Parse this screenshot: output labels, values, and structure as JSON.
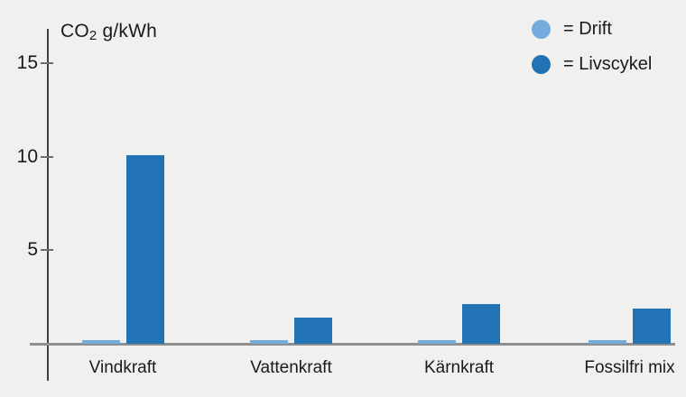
{
  "chart_data": {
    "type": "bar",
    "title": {
      "prefix": "CO",
      "subscript": "2",
      "suffix": " g/kWh"
    },
    "categories": [
      "Vindkraft",
      "Vattenkraft",
      "Kärnkraft",
      "Fossilfri mix"
    ],
    "series": [
      {
        "name": "Drift",
        "color": "#74ABDF",
        "values": [
          0.2,
          0.2,
          0.2,
          0.2
        ]
      },
      {
        "name": "Livscykel",
        "color": "#2173B5",
        "values": [
          10.1,
          1.4,
          2.1,
          1.9
        ]
      }
    ],
    "ylabel": "CO2 g/kWh",
    "xlabel": "",
    "yticks": [
      5,
      10,
      15
    ],
    "ylim": [
      0,
      16.8
    ],
    "grid": false,
    "legend": {
      "position": "top-right",
      "items": [
        {
          "label": "= Drift",
          "color": "#74ABDF"
        },
        {
          "label": "= Livscykel",
          "color": "#2173B5"
        }
      ]
    }
  },
  "colors": {
    "background": "#F0F0EE",
    "text": "#1A1A1A",
    "axis": "#3F3F3F",
    "baseline": "#8F8F8F"
  }
}
